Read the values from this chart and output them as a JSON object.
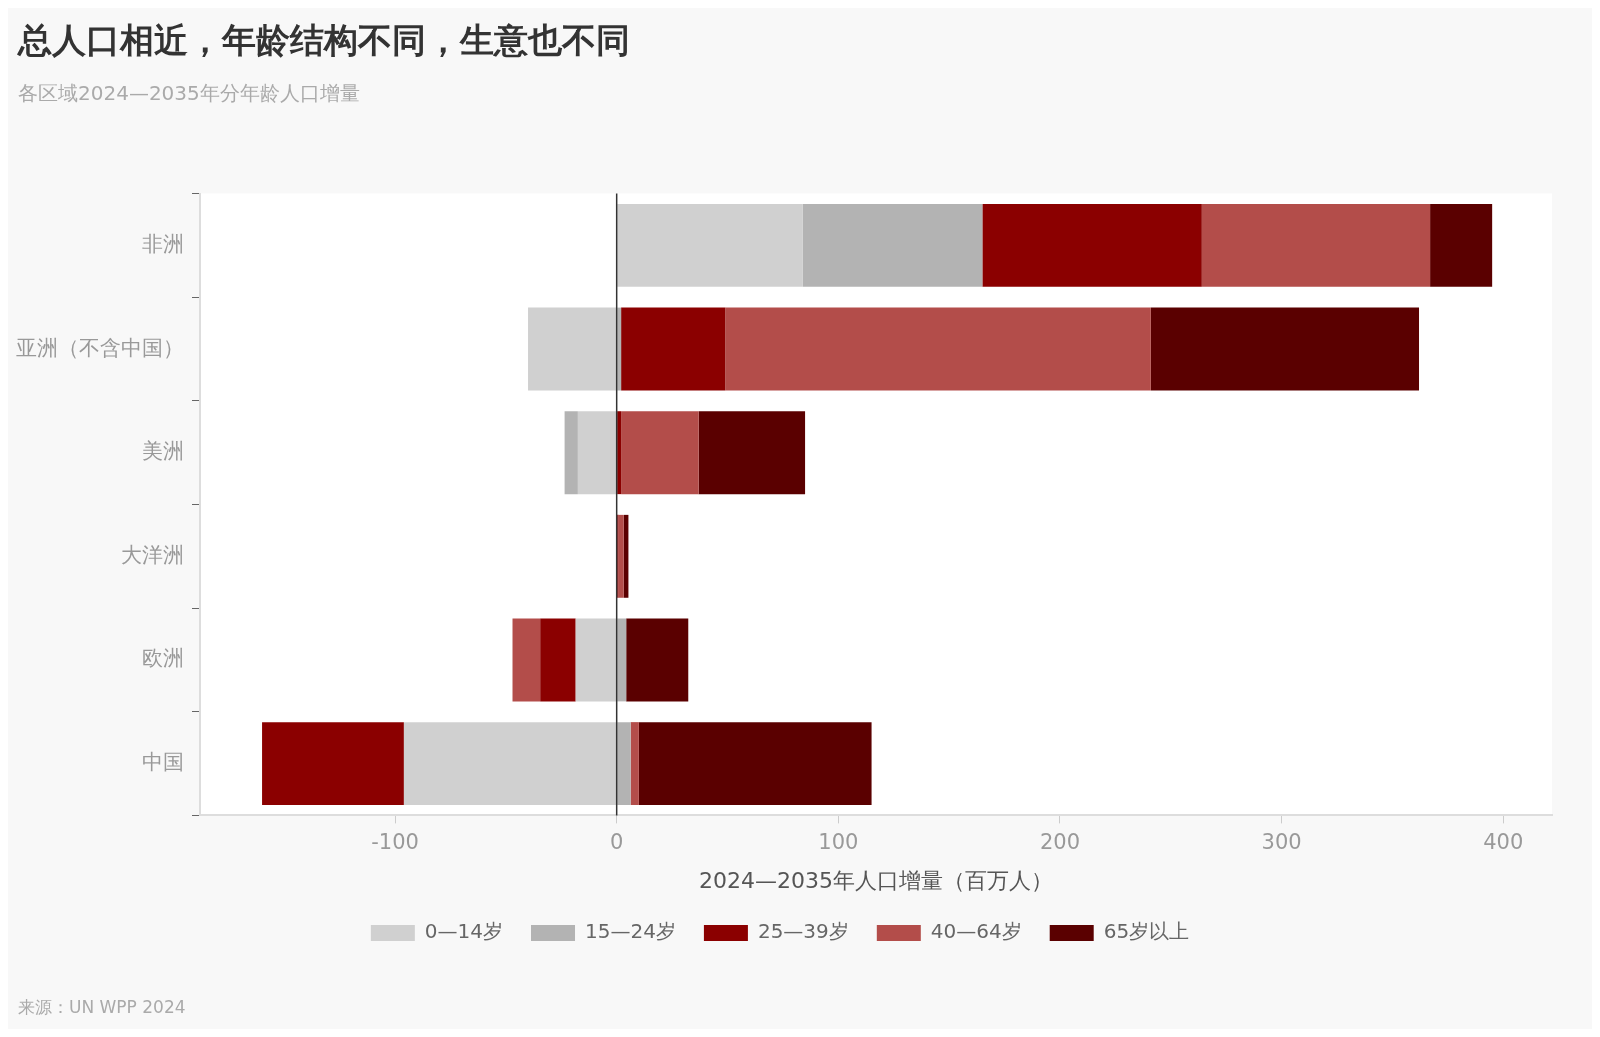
{
  "chart_data": {
    "type": "bar",
    "orientation": "horizontal",
    "stacked": true,
    "title": "总人口相近，年龄结构不同，生意也不同",
    "subtitle": "各区域2024—2035年分年龄人口增量",
    "xlabel": "2024—2035年人口增量（百万人）",
    "annotations": [
      "来源：UN WPP 2024"
    ],
    "categories": [
      "非洲",
      "亚洲（不含中国）",
      "美洲",
      "大洋洲",
      "欧洲",
      "中国"
    ],
    "series": [
      {
        "name": "0—14岁",
        "color": "#d0d0d0",
        "values": [
          84,
          -40,
          -17.5,
          0,
          -18.5,
          -96
        ]
      },
      {
        "name": "15—24岁",
        "color": "#b3b3b3",
        "values": [
          81,
          2,
          -6,
          0,
          4.3,
          6.3
        ]
      },
      {
        "name": "25—39岁",
        "color": "#8b0000",
        "values": [
          99,
          47,
          2,
          0.8,
          -16,
          -64
        ]
      },
      {
        "name": "40—64岁",
        "color": "#b34d4a",
        "values": [
          103,
          192,
          35,
          2.4,
          -12.5,
          3.7
        ]
      },
      {
        "name": "65岁以上",
        "color": "#5a0000",
        "values": [
          28,
          121,
          48,
          2.1,
          28,
          105
        ]
      }
    ],
    "xlim": [
      -188,
      422
    ],
    "xticks": [
      -100,
      0,
      100,
      200,
      300,
      400
    ],
    "ref_lines": [
      {
        "axis": "x",
        "value": 0,
        "color": "#333333"
      }
    ],
    "grid": false,
    "legend": "bottom"
  }
}
